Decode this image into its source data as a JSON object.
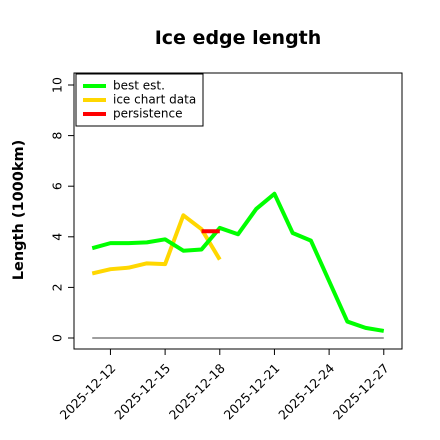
{
  "chart_data": {
    "type": "line",
    "title": "Ice edge length",
    "ylabel": "Length (1000km)",
    "xlabel": "",
    "ylim": [
      0,
      10
    ],
    "yticks": [
      0,
      2,
      4,
      6,
      8,
      10
    ],
    "xlim": [
      "2025-12-10",
      "2025-12-28"
    ],
    "xticks": [
      "2025-12-12",
      "2025-12-15",
      "2025-12-18",
      "2025-12-21",
      "2025-12-24",
      "2025-12-27"
    ],
    "legend_position": "top-left",
    "grid": false,
    "series": [
      {
        "name": "best est.",
        "color": "#00ff00",
        "points": [
          [
            "2025-12-11",
            3.55
          ],
          [
            "2025-12-12",
            3.75
          ],
          [
            "2025-12-13",
            3.75
          ],
          [
            "2025-12-14",
            3.78
          ],
          [
            "2025-12-15",
            3.9
          ],
          [
            "2025-12-16",
            3.45
          ],
          [
            "2025-12-17",
            3.5
          ],
          [
            "2025-12-18",
            4.35
          ],
          [
            "2025-12-19",
            4.1
          ],
          [
            "2025-12-20",
            5.1
          ],
          [
            "2025-12-21",
            5.7
          ],
          [
            "2025-12-22",
            4.15
          ],
          [
            "2025-12-23",
            3.85
          ],
          [
            "2025-12-24",
            2.25
          ],
          [
            "2025-12-25",
            0.65
          ],
          [
            "2025-12-26",
            0.4
          ],
          [
            "2025-12-27",
            0.28
          ]
        ]
      },
      {
        "name": "ice chart data",
        "color": "#ffd700",
        "points": [
          [
            "2025-12-11",
            2.55
          ],
          [
            "2025-12-12",
            2.72
          ],
          [
            "2025-12-13",
            2.78
          ],
          [
            "2025-12-14",
            2.95
          ],
          [
            "2025-12-15",
            2.92
          ],
          [
            "2025-12-16",
            4.85
          ],
          [
            "2025-12-17",
            4.3
          ],
          [
            "2025-12-18",
            3.1
          ]
        ]
      },
      {
        "name": "persistence",
        "color": "#ff0000",
        "points": [
          [
            "2025-12-17",
            4.22
          ],
          [
            "2025-12-18",
            4.22
          ]
        ]
      }
    ],
    "baseline": {
      "color": "#7f7f7f",
      "points": [
        [
          "2025-12-11",
          0.0
        ],
        [
          "2025-12-27",
          0.0
        ]
      ]
    }
  }
}
